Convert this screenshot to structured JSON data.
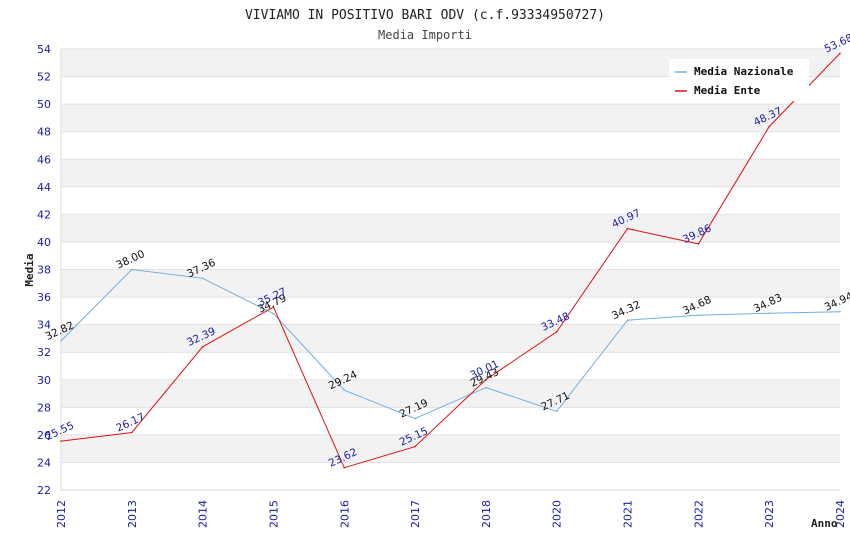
{
  "chart_data": {
    "type": "line",
    "title": "VIVIAMO IN POSITIVO BARI ODV (c.f.93334950727)",
    "subtitle": "Media Importi",
    "xlabel": "Anno",
    "ylabel": "Media",
    "ylim": [
      22,
      54
    ],
    "yticks": [
      "22",
      "24",
      "26",
      "28",
      "30",
      "32",
      "34",
      "36",
      "38",
      "40",
      "42",
      "44",
      "46",
      "48",
      "50",
      "52",
      "54"
    ],
    "categories": [
      "2012",
      "2013",
      "2014",
      "2015",
      "2016",
      "2017",
      "2018",
      "2020",
      "2021",
      "2022",
      "2023",
      "2024"
    ],
    "grid": "horizontal bands",
    "legend_position": "top-right",
    "series": [
      {
        "name": "Media Nazionale",
        "color": "#6ab0e8",
        "label_color": "#111111",
        "values": [
          32.82,
          38.0,
          37.36,
          34.79,
          29.24,
          27.19,
          29.43,
          27.71,
          34.32,
          34.68,
          34.83,
          34.94
        ],
        "labels": [
          "32.82",
          "38.00",
          "37.36",
          "34.79",
          "29.24",
          "27.19",
          "29.43",
          "27.71",
          "34.32",
          "34.68",
          "34.83",
          "34.94"
        ]
      },
      {
        "name": "Media Ente",
        "color": "#e01010",
        "label_color": "#1a1aa6",
        "values": [
          25.55,
          26.17,
          32.39,
          35.27,
          23.62,
          25.15,
          30.01,
          33.48,
          40.97,
          39.86,
          48.37,
          53.68
        ],
        "labels": [
          "25.55",
          "26.17",
          "32.39",
          "35.27",
          "23.62",
          "25.15",
          "30.01",
          "33.48",
          "40.97",
          "39.86",
          "48.37",
          "53.68"
        ]
      }
    ]
  }
}
